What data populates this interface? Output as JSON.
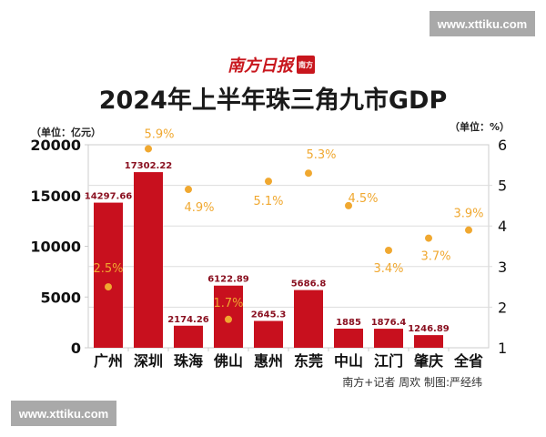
{
  "watermark": "www.xttiku.com",
  "logo_text": "南方日报",
  "credit": "南方+记者 周欢  制图:严经纬",
  "chart_data": {
    "type": "bar+scatter",
    "title": "2024年上半年珠三角九市GDP",
    "left_unit": "（单位：亿元）",
    "right_unit": "（单位：%）",
    "categories": [
      "广州",
      "深圳",
      "珠海",
      "佛山",
      "惠州",
      "东莞",
      "中山",
      "江门",
      "肇庆",
      "全省"
    ],
    "series": [
      {
        "type": "bar",
        "values": [
          14297.66,
          17302.22,
          2174.26,
          6122.89,
          2645.3,
          5686.8,
          1885,
          1876.4,
          1246.89,
          null
        ],
        "labels": [
          "14297.66",
          "17302.22",
          "2174.26",
          "6122.89",
          "2645.3",
          "5686.8",
          "1885",
          "1876.4",
          "1246.89",
          ""
        ],
        "color": "#c8101e",
        "axis": "left"
      },
      {
        "type": "scatter",
        "values": [
          2.5,
          5.9,
          4.9,
          1.7,
          5.1,
          5.3,
          4.5,
          3.4,
          3.7,
          3.9
        ],
        "labels": [
          "2.5%",
          "5.9%",
          "4.9%",
          "1.7%",
          "5.1%",
          "5.3%",
          "4.5%",
          "3.4%",
          "3.7%",
          "3.9%"
        ],
        "color": "#f0a830",
        "axis": "right"
      }
    ],
    "left_axis": {
      "range": [
        0,
        20000
      ],
      "ticks": [
        "0",
        "5000",
        "10000",
        "15000",
        "20000"
      ]
    },
    "right_axis": {
      "range": [
        1,
        6
      ],
      "ticks": [
        "1",
        "2",
        "3",
        "4",
        "5",
        "6"
      ]
    },
    "grid": true
  }
}
